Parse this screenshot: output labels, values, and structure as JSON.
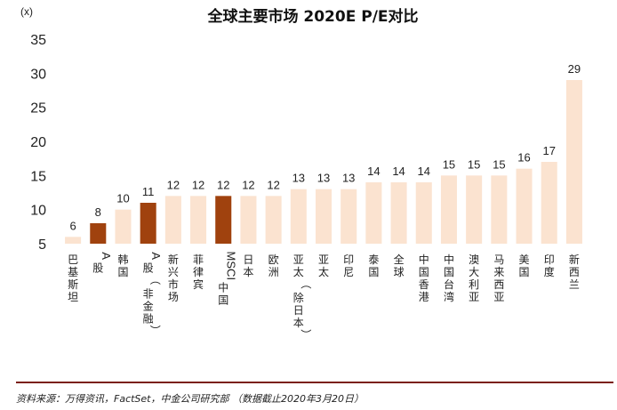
{
  "chart_data": {
    "type": "bar",
    "title": "全球主要市场 2020E P/E对比",
    "y_unit_label": "(x)",
    "ylim": [
      5,
      35
    ],
    "yticks": [
      5,
      10,
      15,
      20,
      25,
      30,
      35
    ],
    "categories": [
      "巴基斯坦",
      "A股",
      "韩国",
      "A股（非金融）",
      "新兴市场",
      "菲律宾",
      "MSCI中国",
      "日本",
      "欧洲",
      "亚太（除日本）",
      "亚太",
      "印尼",
      "泰国",
      "全球",
      "中国香港",
      "中国台湾",
      "澳大利亚",
      "马来西亚",
      "美国",
      "印度",
      "新西兰"
    ],
    "values": [
      6,
      8,
      10,
      11,
      12,
      12,
      12,
      12,
      12,
      13,
      13,
      13,
      14,
      14,
      14,
      15,
      15,
      15,
      16,
      17,
      29
    ],
    "highlighted": [
      "A股",
      "A股（非金融）",
      "MSCI中国"
    ],
    "colors": {
      "normal": "#fbe3d0",
      "highlight": "#a0420e",
      "rule": "#7b1f14"
    },
    "grid": false,
    "legend": "none"
  },
  "source_note": "资料来源：万得资讯，FactSet，中金公司研究部 （数据截止2020年3月20日）"
}
